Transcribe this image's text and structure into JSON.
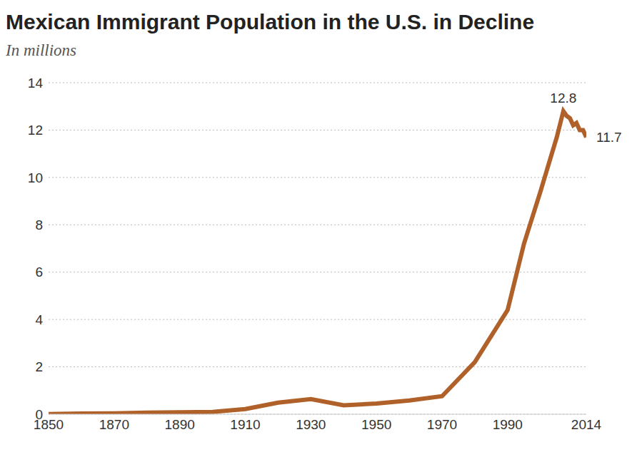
{
  "chart_data": {
    "type": "line",
    "title": "Mexican Immigrant Population in the U.S. in Decline",
    "subtitle": "In millions",
    "x": [
      1850,
      1860,
      1870,
      1880,
      1890,
      1900,
      1910,
      1920,
      1930,
      1940,
      1950,
      1960,
      1970,
      1980,
      1990,
      1995,
      2000,
      2005,
      2007,
      2008,
      2009,
      2010,
      2011,
      2012,
      2013,
      2014
    ],
    "series": [
      {
        "name": "Mexican immigrant population",
        "color": "#b0612a",
        "values": [
          0.01,
          0.03,
          0.04,
          0.07,
          0.08,
          0.1,
          0.22,
          0.49,
          0.64,
          0.38,
          0.45,
          0.58,
          0.76,
          2.2,
          4.4,
          7.2,
          9.4,
          11.7,
          12.8,
          12.6,
          12.5,
          12.2,
          12.3,
          12.0,
          12.0,
          11.7
        ]
      }
    ],
    "xlim": [
      1850,
      2014
    ],
    "xticks": [
      1850,
      1870,
      1890,
      1910,
      1930,
      1950,
      1970,
      1990,
      2014
    ],
    "ylim": [
      0,
      14
    ],
    "yticks": [
      0,
      2,
      4,
      6,
      8,
      10,
      12,
      14
    ],
    "grid": true,
    "annotations": [
      {
        "x": 2007,
        "y": 12.8,
        "text": "12.8"
      },
      {
        "x": 2014,
        "y": 11.7,
        "text": "11.7"
      }
    ]
  }
}
